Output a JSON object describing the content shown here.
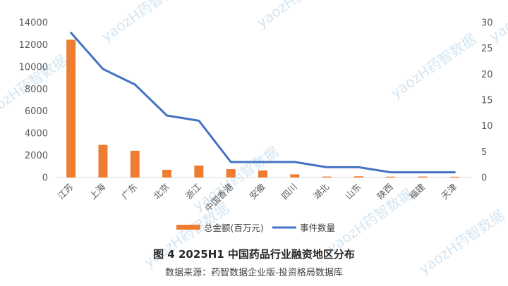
{
  "chart_data": {
    "type": "bar",
    "categories": [
      "江苏",
      "上海",
      "广东",
      "北京",
      "浙江",
      "中国香港",
      "安徽",
      "四川",
      "湖北",
      "山东",
      "陕西",
      "福建",
      "天津"
    ],
    "series": [
      {
        "name": "总金额(百万元)",
        "type": "bar",
        "axis": "left",
        "color": "#ed7d31",
        "values": [
          12450,
          2950,
          2420,
          700,
          1080,
          760,
          640,
          290,
          90,
          110,
          80,
          90,
          70
        ]
      },
      {
        "name": "事件数量",
        "type": "line",
        "axis": "right",
        "color": "#4472c4",
        "values": [
          28,
          21,
          18,
          12,
          11,
          3,
          3,
          3,
          2,
          2,
          1,
          1,
          1
        ]
      }
    ],
    "y_left": {
      "min": 0,
      "max": 14000,
      "ticks": [
        0,
        2000,
        4000,
        6000,
        8000,
        10000,
        12000,
        14000
      ]
    },
    "y_right": {
      "min": 0,
      "max": 30,
      "ticks": [
        0,
        5,
        10,
        15,
        20,
        25,
        30
      ]
    },
    "grid": false,
    "legend_position": "bottom",
    "title": "图 4 2025H1 中国药品行业融资地区分布",
    "subtitle": "数据来源：药智数据企业版-投资格局数据库",
    "watermark": "yaozH药智数据"
  }
}
